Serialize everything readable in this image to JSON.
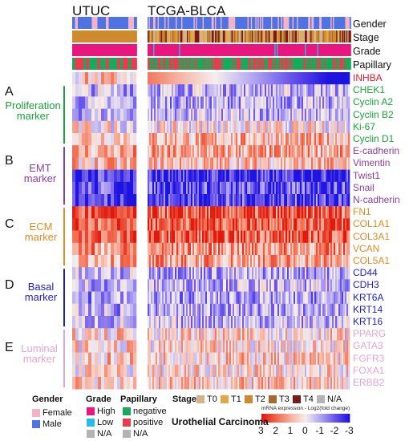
{
  "cohorts": {
    "left": "UTUC",
    "right": "TCGA-BLCA"
  },
  "annotation_tracks": [
    "Gender",
    "Stage",
    "Grade",
    "Papillary"
  ],
  "sections": [
    {
      "letter": "A",
      "label_lines": [
        "Proliferation",
        "marker"
      ],
      "color": "#1aa33a"
    },
    {
      "letter": "B",
      "label_lines": [
        "EMT",
        "marker"
      ],
      "color": "#8c3fa0"
    },
    {
      "letter": "C",
      "label_lines": [
        "ECM",
        "marker"
      ],
      "color": "#de8c24"
    },
    {
      "letter": "D",
      "label_lines": [
        "Basal",
        "marker"
      ],
      "color": "#1f1fc8"
    },
    {
      "letter": "E",
      "label_lines": [
        "Luminal",
        "marker"
      ],
      "color": "#e2a6d3"
    }
  ],
  "genes": [
    {
      "name": "INHBA",
      "group": "INHBA",
      "color": "#e8172e"
    },
    {
      "name": "CHEK1",
      "group": "A",
      "color": "#1aa33a"
    },
    {
      "name": "Cyclin A2",
      "group": "A",
      "color": "#1aa33a"
    },
    {
      "name": "Cyclin B2",
      "group": "A",
      "color": "#1aa33a"
    },
    {
      "name": "Ki-67",
      "group": "A",
      "color": "#1aa33a"
    },
    {
      "name": "Cyclin D1",
      "group": "A",
      "color": "#1aa33a"
    },
    {
      "name": "E-cadherin",
      "group": "B",
      "color": "#8c3fa0"
    },
    {
      "name": "Vimentin",
      "group": "B",
      "color": "#8c3fa0"
    },
    {
      "name": "Twist1",
      "group": "B",
      "color": "#8c3fa0"
    },
    {
      "name": "Snail",
      "group": "B",
      "color": "#8c3fa0"
    },
    {
      "name": "N-cadherin",
      "group": "B",
      "color": "#8c3fa0"
    },
    {
      "name": "FN1",
      "group": "C",
      "color": "#de8c24"
    },
    {
      "name": "COL1A1",
      "group": "C",
      "color": "#de8c24"
    },
    {
      "name": "COL3A1",
      "group": "C",
      "color": "#de8c24"
    },
    {
      "name": "VCAN",
      "group": "C",
      "color": "#de8c24"
    },
    {
      "name": "COL5A1",
      "group": "C",
      "color": "#de8c24"
    },
    {
      "name": "CD44",
      "group": "D",
      "color": "#1f1fc8"
    },
    {
      "name": "CDH3",
      "group": "D",
      "color": "#1f1fc8"
    },
    {
      "name": "KRT6A",
      "group": "D",
      "color": "#1f1fc8"
    },
    {
      "name": "KRT14",
      "group": "D",
      "color": "#1f1fc8"
    },
    {
      "name": "KRT16",
      "group": "D",
      "color": "#1f1fc8"
    },
    {
      "name": "PPARG",
      "group": "E",
      "color": "#e2a6d3"
    },
    {
      "name": "GATA3",
      "group": "E",
      "color": "#e2a6d3"
    },
    {
      "name": "FGFR3",
      "group": "E",
      "color": "#e2a6d3"
    },
    {
      "name": "FOXA1",
      "group": "E",
      "color": "#e2a6d3"
    },
    {
      "name": "ERBB2",
      "group": "E",
      "color": "#e2a6d3"
    }
  ],
  "legend": {
    "gender": {
      "title": "Gender",
      "items": [
        {
          "label": "Female",
          "color": "#f2b3c8"
        },
        {
          "label": "Male",
          "color": "#4f73e3"
        }
      ]
    },
    "grade": {
      "title": "Grade",
      "items": [
        {
          "label": "High",
          "color": "#e8177f"
        },
        {
          "label": "Low",
          "color": "#29b9ea"
        },
        {
          "label": "N/A",
          "color": "#b3b3b3"
        }
      ]
    },
    "papillary": {
      "title": "Papillary",
      "items": [
        {
          "label": "negative",
          "color": "#1aa85a"
        },
        {
          "label": "positive",
          "color": "#ee3a4e"
        },
        {
          "label": "N/A",
          "color": "#b3b3b3"
        }
      ]
    },
    "stage": {
      "title": "Stage",
      "items": [
        {
          "label": "T0",
          "color": "#d3b38a"
        },
        {
          "label": "T1",
          "color": "#e5a54a"
        },
        {
          "label": "T2",
          "color": "#d08a2e"
        },
        {
          "label": "T3",
          "color": "#a8692a"
        },
        {
          "label": "T4",
          "color": "#7a1a12"
        },
        {
          "label": "N/A",
          "color": "#b3b3b3"
        }
      ]
    },
    "disease": "Urothelial Carcinoma",
    "scale_title": "mRNA expression - Log2(fold change)",
    "scale_ticks": [
      "3",
      "2",
      "1",
      "0",
      "-1",
      "-2",
      "-3"
    ],
    "scale_colors": [
      "#e0190f",
      "#f06a4e",
      "#f7b2a0",
      "#f4eeee",
      "#b3a6f0",
      "#6a55ea",
      "#1d14e0"
    ]
  }
}
